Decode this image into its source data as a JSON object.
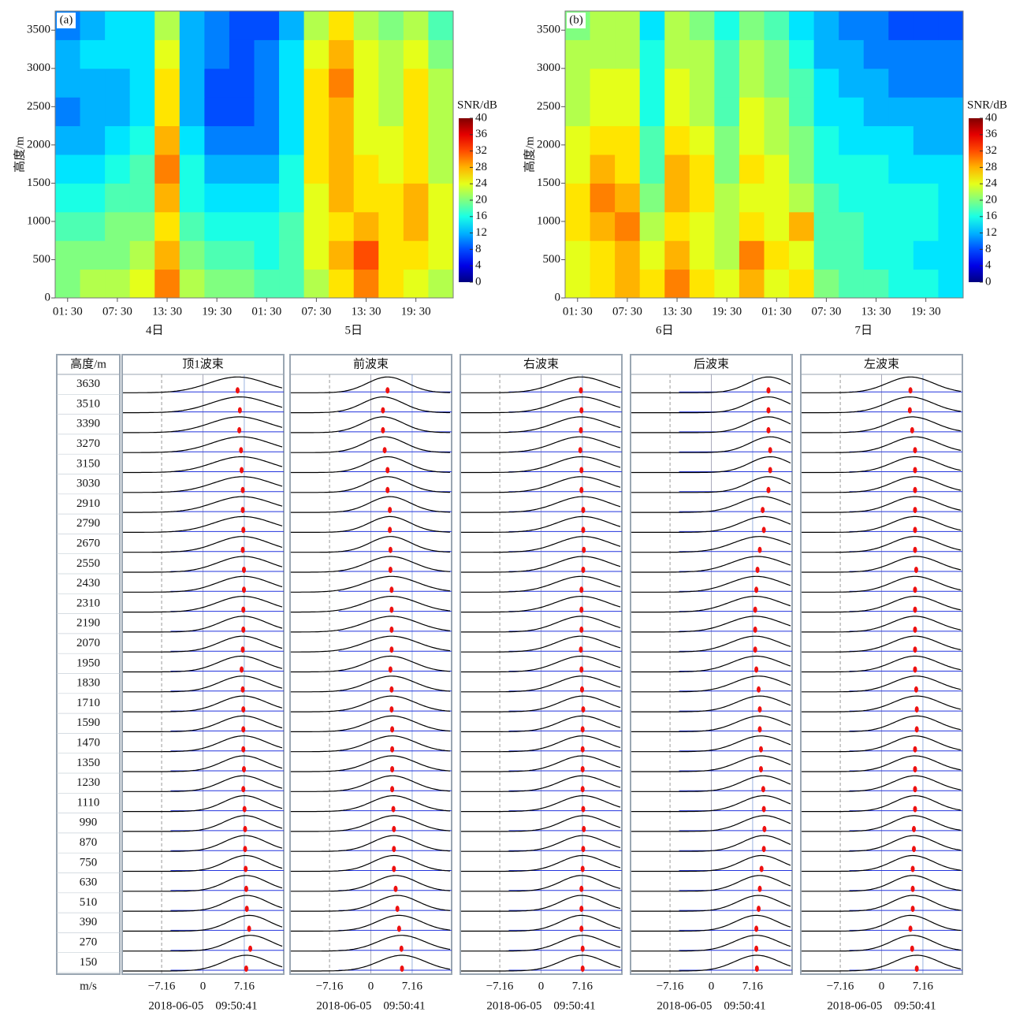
{
  "chart_data": [
    {
      "type": "heatmap",
      "panel_label": "(a)",
      "ylabel": "高度/m",
      "xlim": [
        0,
        48
      ],
      "ylim": [
        0,
        3750
      ],
      "xticks": [
        {
          "value": 1.5,
          "label": "01: 30"
        },
        {
          "value": 7.5,
          "label": "07: 30"
        },
        {
          "value": 13.5,
          "label": "13: 30"
        },
        {
          "value": 19.5,
          "label": "19: 30"
        },
        {
          "value": 25.5,
          "label": "01: 30"
        },
        {
          "value": 31.5,
          "label": "07: 30"
        },
        {
          "value": 37.5,
          "label": "13: 30"
        },
        {
          "value": 43.5,
          "label": "19: 30"
        }
      ],
      "day_ticks": [
        {
          "value": 12,
          "label": "4日"
        },
        {
          "value": 36,
          "label": "5日"
        }
      ],
      "yticks": [
        0,
        500,
        1000,
        1500,
        2000,
        2500,
        3000,
        3500
      ],
      "colorbar": {
        "label": "SNR/dB",
        "clim": [
          0,
          40
        ],
        "ticks": [
          0,
          4,
          8,
          12,
          16,
          20,
          24,
          28,
          32,
          36,
          40
        ]
      },
      "z": [
        [
          20,
          22,
          22,
          24,
          30,
          22,
          20,
          20,
          18,
          18,
          22,
          26,
          30,
          26,
          24,
          22
        ],
        [
          20,
          20,
          20,
          22,
          28,
          20,
          18,
          18,
          16,
          18,
          24,
          28,
          32,
          26,
          26,
          24
        ],
        [
          18,
          18,
          20,
          20,
          26,
          18,
          16,
          16,
          16,
          18,
          24,
          26,
          28,
          26,
          28,
          24
        ],
        [
          16,
          16,
          18,
          18,
          28,
          16,
          14,
          14,
          14,
          16,
          24,
          28,
          26,
          26,
          28,
          24
        ],
        [
          14,
          14,
          16,
          18,
          30,
          16,
          12,
          12,
          12,
          16,
          26,
          28,
          26,
          24,
          26,
          22
        ],
        [
          12,
          12,
          14,
          16,
          28,
          14,
          10,
          10,
          10,
          14,
          26,
          28,
          24,
          24,
          26,
          22
        ],
        [
          10,
          12,
          12,
          14,
          26,
          12,
          8,
          8,
          10,
          14,
          26,
          28,
          24,
          22,
          26,
          22
        ],
        [
          12,
          12,
          12,
          14,
          26,
          12,
          8,
          8,
          10,
          14,
          26,
          30,
          24,
          22,
          26,
          22
        ],
        [
          12,
          14,
          14,
          14,
          24,
          12,
          10,
          8,
          10,
          14,
          24,
          28,
          24,
          22,
          24,
          20
        ],
        [
          10,
          12,
          14,
          14,
          22,
          12,
          10,
          8,
          8,
          12,
          22,
          26,
          22,
          20,
          22,
          18
        ]
      ]
    },
    {
      "type": "heatmap",
      "panel_label": "(b)",
      "ylabel": "高度/m",
      "xlim": [
        0,
        48
      ],
      "ylim": [
        0,
        3750
      ],
      "xticks": [
        {
          "value": 1.5,
          "label": "01: 30"
        },
        {
          "value": 7.5,
          "label": "07: 30"
        },
        {
          "value": 13.5,
          "label": "13: 30"
        },
        {
          "value": 19.5,
          "label": "19: 30"
        },
        {
          "value": 25.5,
          "label": "01: 30"
        },
        {
          "value": 31.5,
          "label": "07: 30"
        },
        {
          "value": 37.5,
          "label": "13: 30"
        },
        {
          "value": 43.5,
          "label": "19: 30"
        }
      ],
      "day_ticks": [
        {
          "value": 12,
          "label": "6日"
        },
        {
          "value": 36,
          "label": "7日"
        }
      ],
      "yticks": [
        0,
        500,
        1000,
        1500,
        2000,
        2500,
        3000,
        3500
      ],
      "colorbar": {
        "label": "SNR/dB",
        "clim": [
          0,
          40
        ],
        "ticks": [
          0,
          4,
          8,
          12,
          16,
          20,
          24,
          28,
          32,
          36,
          40
        ]
      },
      "z": [
        [
          24,
          26,
          28,
          26,
          30,
          26,
          24,
          28,
          24,
          26,
          20,
          18,
          18,
          16,
          16,
          14
        ],
        [
          24,
          26,
          28,
          24,
          28,
          24,
          22,
          30,
          26,
          24,
          18,
          18,
          16,
          16,
          14,
          14
        ],
        [
          26,
          28,
          30,
          22,
          26,
          24,
          22,
          26,
          24,
          28,
          18,
          18,
          16,
          16,
          16,
          14
        ],
        [
          26,
          30,
          28,
          20,
          28,
          26,
          22,
          24,
          24,
          22,
          18,
          16,
          16,
          16,
          16,
          14
        ],
        [
          24,
          28,
          26,
          18,
          28,
          26,
          20,
          26,
          24,
          20,
          16,
          16,
          16,
          14,
          14,
          14
        ],
        [
          24,
          26,
          26,
          18,
          26,
          24,
          20,
          24,
          22,
          20,
          16,
          14,
          14,
          14,
          12,
          12
        ],
        [
          22,
          24,
          24,
          16,
          24,
          22,
          18,
          24,
          22,
          18,
          14,
          14,
          12,
          12,
          12,
          12
        ],
        [
          22,
          24,
          24,
          16,
          24,
          22,
          18,
          22,
          20,
          18,
          14,
          12,
          12,
          10,
          10,
          10
        ],
        [
          22,
          22,
          22,
          16,
          22,
          22,
          18,
          22,
          20,
          16,
          12,
          12,
          10,
          10,
          10,
          10
        ],
        [
          20,
          22,
          22,
          14,
          22,
          20,
          16,
          20,
          18,
          14,
          12,
          10,
          10,
          8,
          8,
          8
        ]
      ]
    },
    {
      "type": "spectrum",
      "height_header": "高度/m",
      "xunit": "m/s",
      "heights": [
        3630,
        3510,
        3390,
        3270,
        3150,
        3030,
        2910,
        2790,
        2670,
        2550,
        2430,
        2310,
        2190,
        2070,
        1950,
        1830,
        1710,
        1590,
        1470,
        1350,
        1230,
        1110,
        990,
        870,
        750,
        630,
        510,
        390,
        270,
        150
      ],
      "xlim": [
        -14,
        14
      ],
      "xticks": [
        {
          "value": -7.16,
          "label": "−7.16"
        },
        0,
        7.16
      ],
      "beams": [
        {
          "name": "顶1波束",
          "timestamp": "2018-06-05    09:50:41",
          "peaks": [
            6.0,
            6.4,
            6.3,
            6.6,
            6.7,
            6.9,
            6.9,
            7.0,
            6.9,
            7.1,
            7.1,
            7.0,
            7.0,
            6.9,
            6.7,
            6.9,
            7.0,
            7.0,
            7.0,
            7.1,
            7.0,
            7.2,
            7.3,
            7.3,
            7.4,
            7.5,
            7.6,
            8.0,
            8.2,
            7.5
          ],
          "widths": [
            5,
            5,
            5,
            5,
            5,
            5,
            5,
            5,
            4.5,
            4.5,
            4.5,
            4.5,
            4,
            4,
            4,
            4,
            4,
            4,
            4,
            3.8,
            3.8,
            3.6,
            3.6,
            3.6,
            3.5,
            3.5,
            3.5,
            3.5,
            3.6,
            3.8
          ]
        },
        {
          "name": "前波束",
          "timestamp": "2018-06-05    09:50:41",
          "peaks": [
            2.9,
            2.1,
            2.1,
            2.4,
            2.9,
            2.9,
            3.3,
            3.3,
            3.4,
            3.4,
            3.6,
            3.6,
            3.6,
            3.6,
            3.4,
            3.6,
            3.6,
            3.7,
            3.7,
            3.7,
            3.7,
            3.9,
            4.0,
            4.0,
            4.0,
            4.3,
            4.6,
            4.9,
            5.3,
            5.4
          ],
          "widths": [
            3.5,
            3.5,
            3.5,
            3.5,
            3.5,
            3.5,
            3.5,
            3.5,
            3.5,
            4,
            4.5,
            4.5,
            4.5,
            4.5,
            4,
            4,
            4,
            4,
            4,
            4,
            3.8,
            3.8,
            3.8,
            3.6,
            3.6,
            3.6,
            3.6,
            3.8,
            4,
            4
          ]
        },
        {
          "name": "右波束",
          "timestamp": "2018-06-05    09:50:41",
          "peaks": [
            6.9,
            7.0,
            6.9,
            6.8,
            7.0,
            7.0,
            7.3,
            7.3,
            7.4,
            7.3,
            7.0,
            7.0,
            7.0,
            6.9,
            7.0,
            7.1,
            7.3,
            7.2,
            7.2,
            7.2,
            7.2,
            7.3,
            7.4,
            7.3,
            7.2,
            7.0,
            7.0,
            7.0,
            7.2,
            7.2
          ],
          "widths": [
            4.5,
            4.5,
            4.5,
            4.5,
            4.5,
            4.5,
            4.5,
            4.5,
            4.5,
            4.5,
            4.5,
            4.5,
            4.2,
            4.2,
            4.2,
            4.2,
            4,
            4,
            4,
            4,
            4,
            4,
            3.8,
            3.8,
            3.8,
            3.6,
            3.6,
            3.6,
            3.8,
            3.8
          ]
        },
        {
          "name": "后波束",
          "timestamp": "2018-06-05    09:50:41",
          "peaks": [
            9.9,
            9.9,
            9.9,
            10.2,
            10.2,
            9.9,
            8.9,
            9.1,
            8.4,
            8.0,
            7.8,
            7.6,
            7.6,
            7.6,
            7.8,
            8.2,
            8.4,
            8.4,
            8.6,
            8.6,
            9.0,
            9.1,
            9.2,
            9.1,
            8.7,
            8.4,
            8.2,
            7.8,
            7.8,
            7.9
          ],
          "widths": [
            3.5,
            3.5,
            3.5,
            3.5,
            3.5,
            3.5,
            4,
            4,
            4.5,
            4.5,
            4.5,
            4.5,
            4.5,
            4.2,
            4.2,
            4.2,
            4,
            4,
            4,
            4,
            3.8,
            3.8,
            3.8,
            3.6,
            3.6,
            3.6,
            3.6,
            3.6,
            3.8,
            3.8
          ]
        },
        {
          "name": "左波束",
          "timestamp": "2018-06-05    09:50:41",
          "peaks": [
            5.0,
            4.9,
            5.3,
            5.8,
            5.8,
            5.8,
            5.8,
            5.8,
            5.8,
            6.0,
            5.8,
            5.8,
            5.8,
            5.8,
            5.8,
            6.0,
            6.1,
            6.1,
            5.8,
            5.8,
            5.8,
            5.8,
            5.6,
            5.6,
            5.4,
            5.4,
            5.4,
            5.0,
            5.3,
            6.1
          ],
          "widths": [
            4,
            4,
            4,
            4,
            4,
            4,
            4,
            4,
            4,
            4,
            4,
            4,
            4,
            4,
            4,
            4,
            4,
            3.8,
            3.8,
            3.8,
            3.8,
            3.6,
            3.6,
            3.6,
            3.6,
            3.5,
            3.5,
            3.5,
            3.6,
            3.8
          ]
        }
      ]
    }
  ]
}
